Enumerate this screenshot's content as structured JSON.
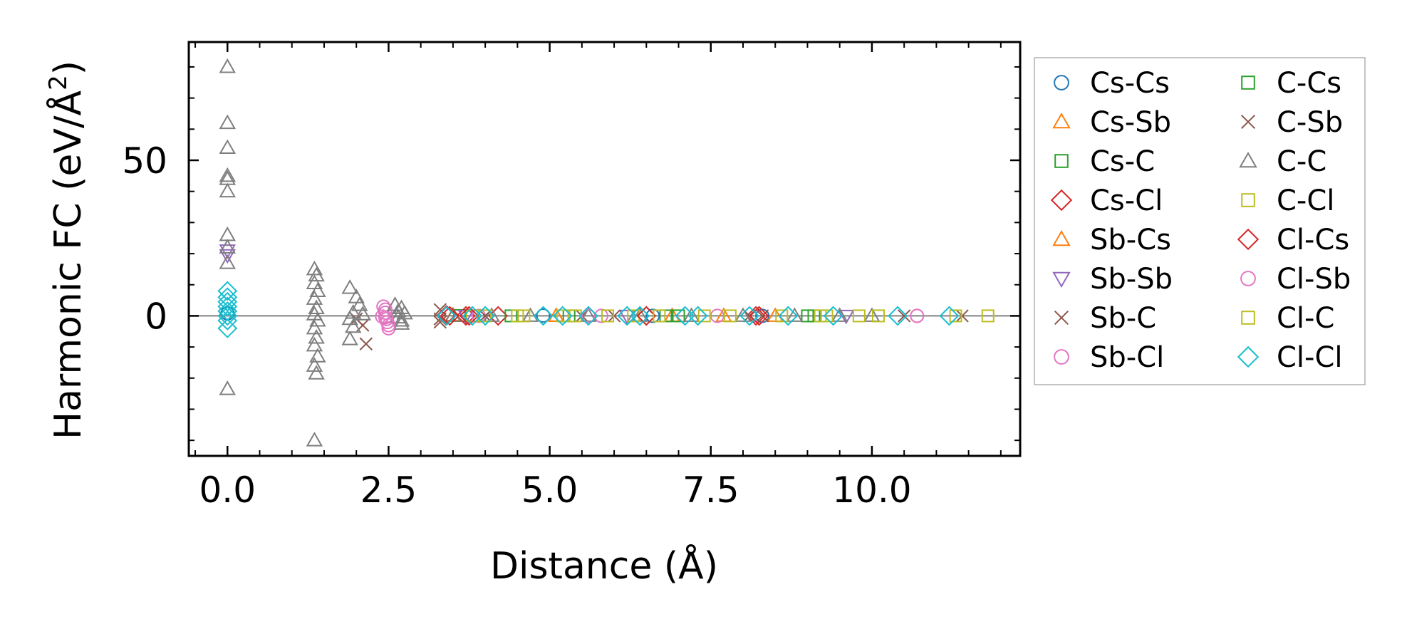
{
  "chart_data": {
    "type": "scatter",
    "title": "",
    "xlabel": "Distance (Å)",
    "ylabel_main": "Harmonic FC (eV/Å",
    "ylabel_sup": "2",
    "ylabel_close": ")",
    "xlim": [
      -0.6,
      12.3
    ],
    "ylim": [
      -45,
      88
    ],
    "xticks": [
      0.0,
      2.5,
      5.0,
      7.5,
      10.0
    ],
    "xtick_labels": [
      "0.0",
      "2.5",
      "5.0",
      "7.5",
      "10.0"
    ],
    "yticks": [
      0,
      50
    ],
    "ytick_labels": [
      "0",
      "50"
    ],
    "zero_line": true,
    "legend_position": "right, outside",
    "series": [
      {
        "name": "Cs-Cs",
        "color": "#1f77b4",
        "marker": "circle",
        "points": [
          [
            0.0,
            0.8
          ],
          [
            4.9,
            0.1
          ],
          [
            6.6,
            0.0
          ],
          [
            8.3,
            0.0
          ]
        ]
      },
      {
        "name": "Cs-Sb",
        "color": "#ff7f0e",
        "marker": "triangle-up",
        "points": [
          [
            3.5,
            0.2
          ],
          [
            5.1,
            0.0
          ],
          [
            6.9,
            0.0
          ],
          [
            8.5,
            0.0
          ]
        ]
      },
      {
        "name": "Cs-C",
        "color": "#2ca02c",
        "marker": "square",
        "points": [
          [
            3.6,
            0.1
          ],
          [
            5.3,
            0.0
          ],
          [
            7.0,
            0.0
          ],
          [
            9.0,
            0.0
          ]
        ]
      },
      {
        "name": "Cs-Cl",
        "color": "#d62728",
        "marker": "diamond",
        "points": [
          [
            3.4,
            0.3
          ],
          [
            3.7,
            0.0
          ],
          [
            4.2,
            0.0
          ],
          [
            6.5,
            0.0
          ],
          [
            8.2,
            0.0
          ]
        ]
      },
      {
        "name": "Sb-Cs",
        "color": "#ff7f0e",
        "marker": "triangle-up",
        "points": [
          [
            3.5,
            0.0
          ],
          [
            5.1,
            0.0
          ],
          [
            7.7,
            0.0
          ]
        ]
      },
      {
        "name": "Sb-Sb",
        "color": "#9467bd",
        "marker": "triangle-down",
        "points": [
          [
            0.0,
            21.0
          ],
          [
            0.0,
            19.5
          ],
          [
            3.7,
            0.0
          ],
          [
            6.2,
            0.0
          ],
          [
            9.6,
            0.0
          ]
        ]
      },
      {
        "name": "Sb-C",
        "color": "#8c564b",
        "marker": "x",
        "points": [
          [
            2.0,
            -1.0
          ],
          [
            2.1,
            -3.0
          ],
          [
            2.15,
            -9.0
          ],
          [
            3.3,
            2.0
          ],
          [
            3.3,
            -2.0
          ],
          [
            5.5,
            0.0
          ],
          [
            8.3,
            0.0
          ],
          [
            11.4,
            0.0
          ]
        ]
      },
      {
        "name": "Sb-Cl",
        "color": "#e377c2",
        "marker": "circle",
        "points": [
          [
            2.42,
            3.0
          ],
          [
            2.45,
            1.0
          ],
          [
            2.45,
            -0.5
          ],
          [
            2.48,
            -2.0
          ],
          [
            2.5,
            -4.0
          ],
          [
            2.4,
            -0.2
          ],
          [
            3.9,
            0.0
          ],
          [
            5.8,
            0.0
          ],
          [
            7.6,
            0.0
          ],
          [
            10.7,
            0.0
          ]
        ]
      },
      {
        "name": "C-Cs",
        "color": "#2ca02c",
        "marker": "square",
        "points": [
          [
            4.4,
            0.0
          ],
          [
            6.8,
            0.0
          ],
          [
            9.1,
            0.0
          ]
        ]
      },
      {
        "name": "C-Sb",
        "color": "#8c564b",
        "marker": "x",
        "points": [
          [
            3.3,
            -1.0
          ],
          [
            4.0,
            0.0
          ],
          [
            6.0,
            0.0
          ],
          [
            8.1,
            0.0
          ],
          [
            10.5,
            0.0
          ]
        ]
      },
      {
        "name": "C-C",
        "color": "#7f7f7f",
        "marker": "triangle-up",
        "points": [
          [
            0.0,
            80.0
          ],
          [
            0.0,
            62.0
          ],
          [
            0.0,
            54.0
          ],
          [
            0.0,
            45.0
          ],
          [
            0.0,
            44.0
          ],
          [
            0.0,
            40.0
          ],
          [
            0.0,
            26.0
          ],
          [
            0.0,
            22.0
          ],
          [
            0.0,
            17.0
          ],
          [
            0.0,
            -23.5
          ],
          [
            1.35,
            15.0
          ],
          [
            1.38,
            13.0
          ],
          [
            1.35,
            10.5
          ],
          [
            1.4,
            8.0
          ],
          [
            1.35,
            5.5
          ],
          [
            1.38,
            2.5
          ],
          [
            1.35,
            0.5
          ],
          [
            1.4,
            -1.5
          ],
          [
            1.35,
            -4.0
          ],
          [
            1.38,
            -7.0
          ],
          [
            1.35,
            -9.5
          ],
          [
            1.4,
            -13.0
          ],
          [
            1.35,
            -16.0
          ],
          [
            1.38,
            -18.5
          ],
          [
            1.35,
            -40.0
          ],
          [
            1.9,
            9.0
          ],
          [
            2.0,
            6.0
          ],
          [
            2.05,
            3.5
          ],
          [
            1.95,
            1.0
          ],
          [
            1.9,
            -1.0
          ],
          [
            1.95,
            -3.5
          ],
          [
            1.9,
            -7.5
          ],
          [
            2.1,
            0.5
          ],
          [
            2.6,
            3.5
          ],
          [
            2.65,
            1.5
          ],
          [
            2.7,
            2.5
          ],
          [
            2.65,
            -0.5
          ],
          [
            2.7,
            -2.5
          ],
          [
            2.75,
            0.8
          ],
          [
            2.7,
            -1.5
          ],
          [
            3.5,
            0.0
          ],
          [
            4.1,
            0.0
          ],
          [
            4.7,
            0.0
          ],
          [
            5.6,
            0.0
          ],
          [
            6.4,
            0.0
          ],
          [
            7.2,
            0.0
          ],
          [
            8.0,
            0.0
          ],
          [
            8.8,
            0.0
          ],
          [
            9.5,
            0.0
          ],
          [
            10.0,
            0.0
          ]
        ]
      },
      {
        "name": "C-Cl",
        "color": "#bcbd22",
        "marker": "square",
        "points": [
          [
            3.8,
            0.0
          ],
          [
            4.5,
            0.0
          ],
          [
            5.4,
            0.0
          ],
          [
            6.3,
            0.0
          ],
          [
            7.4,
            0.0
          ],
          [
            8.6,
            0.0
          ],
          [
            9.3,
            0.0
          ],
          [
            10.1,
            0.0
          ],
          [
            11.8,
            0.0
          ]
        ]
      },
      {
        "name": "Cl-Cs",
        "color": "#d62728",
        "marker": "diamond",
        "points": [
          [
            3.45,
            0.0
          ],
          [
            3.75,
            0.0
          ],
          [
            6.5,
            0.0
          ],
          [
            8.25,
            0.0
          ]
        ]
      },
      {
        "name": "Cl-Sb",
        "color": "#e377c2",
        "marker": "circle",
        "points": [
          [
            2.45,
            2.0
          ],
          [
            2.47,
            -1.0
          ],
          [
            2.5,
            -3.0
          ],
          [
            5.6,
            0.0
          ],
          [
            10.7,
            0.0
          ]
        ]
      },
      {
        "name": "Cl-C",
        "color": "#bcbd22",
        "marker": "square",
        "points": [
          [
            4.0,
            0.0
          ],
          [
            4.6,
            0.0
          ],
          [
            5.2,
            0.0
          ],
          [
            5.9,
            0.0
          ],
          [
            6.7,
            0.0
          ],
          [
            7.8,
            0.0
          ],
          [
            9.2,
            0.0
          ],
          [
            9.8,
            0.0
          ],
          [
            11.3,
            0.0
          ]
        ]
      },
      {
        "name": "Cl-Cl",
        "color": "#17becf",
        "marker": "diamond",
        "points": [
          [
            0.0,
            8.0
          ],
          [
            0.0,
            6.0
          ],
          [
            0.0,
            4.5
          ],
          [
            0.0,
            3.0
          ],
          [
            0.0,
            1.5
          ],
          [
            0.0,
            0.0
          ],
          [
            0.0,
            -1.5
          ],
          [
            0.0,
            -4.0
          ],
          [
            3.4,
            0.0
          ],
          [
            3.8,
            0.0
          ],
          [
            4.0,
            0.0
          ],
          [
            4.9,
            0.0
          ],
          [
            5.2,
            0.0
          ],
          [
            5.6,
            0.0
          ],
          [
            6.2,
            0.0
          ],
          [
            6.4,
            0.0
          ],
          [
            7.1,
            0.0
          ],
          [
            7.3,
            0.0
          ],
          [
            8.1,
            0.0
          ],
          [
            8.7,
            0.0
          ],
          [
            9.4,
            0.0
          ],
          [
            10.4,
            0.0
          ],
          [
            11.2,
            0.0
          ]
        ]
      }
    ]
  }
}
